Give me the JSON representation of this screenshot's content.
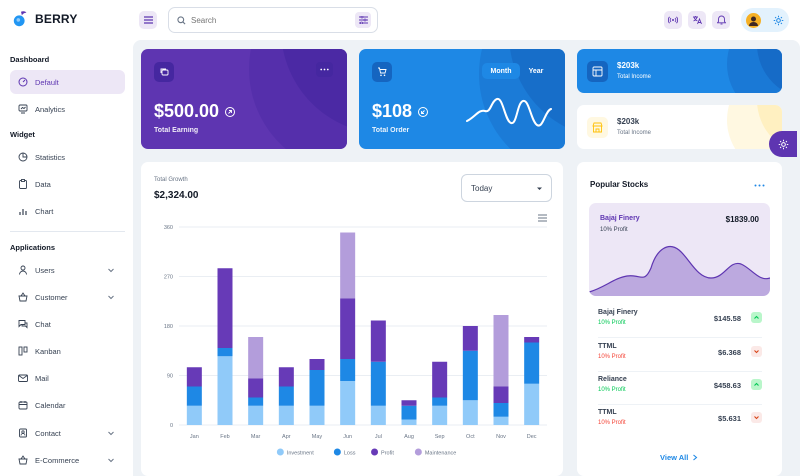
{
  "app": {
    "brand": "BERRY",
    "search_placeholder": "Search"
  },
  "sidebar": {
    "sections": [
      {
        "title": "Dashboard"
      },
      {
        "title": "Widget"
      },
      {
        "title": "Applications"
      }
    ],
    "items": [
      {
        "label": "Default",
        "icon": "dashboard-icon",
        "active": true
      },
      {
        "label": "Analytics",
        "icon": "analytics-icon"
      },
      {
        "label": "Statistics",
        "icon": "statistics-icon"
      },
      {
        "label": "Data",
        "icon": "clipboard-icon"
      },
      {
        "label": "Chart",
        "icon": "chart-icon"
      },
      {
        "label": "Users",
        "icon": "user-icon",
        "expandable": true
      },
      {
        "label": "Customer",
        "icon": "basket-icon",
        "expandable": true
      },
      {
        "label": "Chat",
        "icon": "chat-icon"
      },
      {
        "label": "Kanban",
        "icon": "kanban-icon"
      },
      {
        "label": "Mail",
        "icon": "mail-icon"
      },
      {
        "label": "Calendar",
        "icon": "calendar-icon"
      },
      {
        "label": "Contact",
        "icon": "contact-icon",
        "expandable": true
      },
      {
        "label": "E-Commerce",
        "icon": "basket-icon",
        "expandable": true
      }
    ]
  },
  "cards": {
    "earning": {
      "value": "$500.00",
      "label": "Total Earning"
    },
    "order": {
      "value": "$108",
      "label": "Total Order",
      "toggle_month": "Month",
      "toggle_year": "Year",
      "active_toggle": "Month"
    },
    "income_dark": {
      "value": "$203k",
      "label": "Total Income"
    },
    "income_light": {
      "value": "$203k",
      "label": "Total Income"
    }
  },
  "growth": {
    "label": "Total Growth",
    "value": "$2,324.00",
    "period": "Today"
  },
  "chart_data": {
    "type": "bar",
    "stacked": true,
    "categories": [
      "Jan",
      "Feb",
      "Mar",
      "Apr",
      "May",
      "Jun",
      "Jul",
      "Aug",
      "Sep",
      "Oct",
      "Nov",
      "Dec"
    ],
    "series": [
      {
        "name": "Investment",
        "color": "#90caf9",
        "values": [
          35,
          125,
          35,
          35,
          35,
          80,
          35,
          10,
          35,
          45,
          15,
          75
        ]
      },
      {
        "name": "Loss",
        "color": "#1e88e5",
        "values": [
          35,
          15,
          15,
          35,
          65,
          40,
          80,
          25,
          15,
          90,
          25,
          75
        ]
      },
      {
        "name": "Profit",
        "color": "#673ab7",
        "values": [
          35,
          145,
          35,
          35,
          20,
          110,
          75,
          10,
          65,
          45,
          30,
          10
        ]
      },
      {
        "name": "Maintenance",
        "color": "#b39ddb",
        "values": [
          0,
          0,
          75,
          0,
          0,
          120,
          0,
          0,
          0,
          0,
          130,
          0
        ]
      }
    ],
    "yticks": [
      0,
      90,
      180,
      270,
      360
    ],
    "ylim": [
      0,
      360
    ],
    "grid": true,
    "legend": "bottom"
  },
  "stocks": {
    "title": "Popular Stocks",
    "featured": {
      "name": "Bajaj Finery",
      "profit": "10% Profit",
      "price": "$1839.00"
    },
    "rows": [
      {
        "name": "Bajaj Finery",
        "profit": "10% Profit",
        "price": "$145.58",
        "trend": "up"
      },
      {
        "name": "TTML",
        "profit": "10% Profit",
        "price": "$6.368",
        "trend": "down"
      },
      {
        "name": "Reliance",
        "profit": "10% Profit",
        "price": "$458.63",
        "trend": "up"
      },
      {
        "name": "TTML",
        "profit": "10% Profit",
        "price": "$5.631",
        "trend": "down"
      }
    ],
    "view_all": "View All"
  }
}
